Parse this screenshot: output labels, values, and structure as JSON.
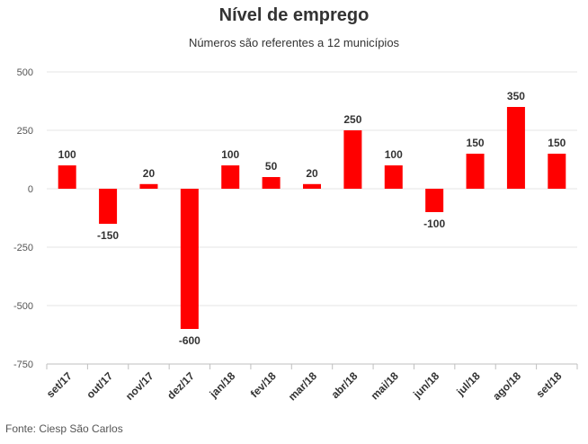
{
  "header": {
    "title": "Nível de emprego",
    "subtitle": "Números são referentes a 12 municípios"
  },
  "footer": {
    "source": "Fonte: Ciesp São Carlos"
  },
  "chart_data": {
    "type": "bar",
    "title": "Nível de emprego",
    "subtitle": "Números são referentes a 12 municípios",
    "categories": [
      "set/17",
      "out/17",
      "nov/17",
      "dez/17",
      "jan/18",
      "fev/18",
      "mar/18",
      "abr/18",
      "mai/18",
      "jun/18",
      "jul/18",
      "ago/18",
      "set/18"
    ],
    "values": [
      100,
      -150,
      20,
      -600,
      100,
      50,
      20,
      250,
      100,
      -100,
      150,
      350,
      150
    ],
    "ylim": [
      -750,
      500
    ],
    "yticks": [
      500,
      250,
      0,
      -250,
      -500,
      -750
    ],
    "bar_color": "#ff0000",
    "grid": true,
    "xlabel": "",
    "ylabel": ""
  }
}
